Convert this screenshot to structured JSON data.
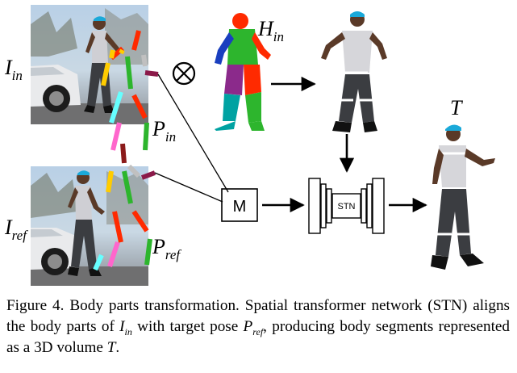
{
  "labels": {
    "I_in": {
      "base": "I",
      "sub": "in"
    },
    "P_in": {
      "base": "P",
      "sub": "in"
    },
    "I_ref": {
      "base": "I",
      "sub": "ref"
    },
    "P_ref": {
      "base": "P",
      "sub": "ref"
    },
    "H_in": {
      "base": "H",
      "sub": "in"
    },
    "T": "T",
    "tensor_op": "⊗",
    "module_M": "M",
    "stn": "STN"
  },
  "caption": {
    "figure_label": "Figure 4.",
    "title": "Body parts transformation.",
    "text_1": "Spatial transformer network (STN) aligns the body parts of",
    "var_I": "I",
    "var_I_sub": "in",
    "text_2": "with target pose",
    "var_P": "P",
    "var_P_sub": "ref",
    "text_3": ", producing body segments represented as a 3D volume",
    "var_T": "T",
    "text_4": "."
  },
  "colors": {
    "arrow": "#000000",
    "photo_sky": "#aec6dd",
    "parts": [
      "#ff2a00",
      "#2db52d",
      "#8b2a8b",
      "#1a3fbf",
      "#00a2a2",
      "#ffcc00",
      "#ff66cc",
      "#66ffff"
    ]
  }
}
